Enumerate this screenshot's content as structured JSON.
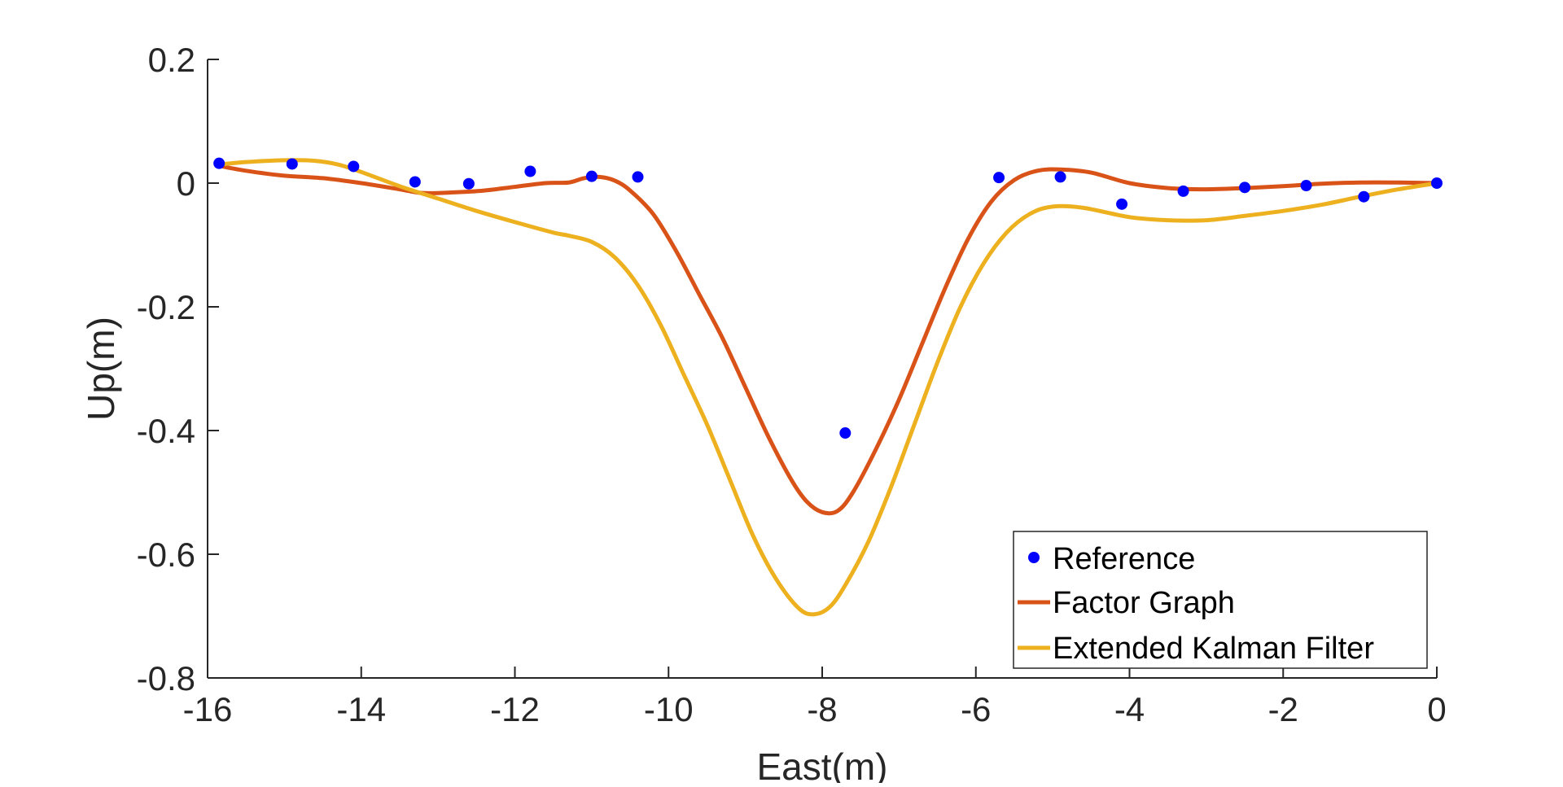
{
  "chart_data": {
    "type": "line",
    "xlabel": "East(m)",
    "ylabel": "Up(m)",
    "xlim": [
      -16,
      0
    ],
    "ylim": [
      -0.8,
      0.2
    ],
    "x_ticks": [
      -16,
      -14,
      -12,
      -10,
      -8,
      -6,
      -4,
      -2,
      0
    ],
    "y_ticks": [
      0.2,
      0,
      -0.2,
      -0.4,
      -0.6,
      -0.8
    ],
    "x_tick_labels": [
      "-16",
      "-14",
      "-12",
      "-10",
      "-8",
      "-6",
      "-4",
      "-2",
      "0"
    ],
    "y_tick_labels": [
      "0.2",
      "0",
      "-0.2",
      "-0.4",
      "-0.6",
      "-0.8"
    ],
    "grid": false,
    "box": false,
    "legend_placement": "bottom-right",
    "series": [
      {
        "name": "Reference",
        "style": "markers",
        "color": "#0000ff",
        "x": [
          -15.85,
          -14.9,
          -14.1,
          -13.3,
          -12.6,
          -11.8,
          -11.0,
          -10.4,
          -7.7,
          -5.7,
          -4.9,
          -4.1,
          -3.3,
          -2.5,
          -1.7,
          -0.95,
          0.0
        ],
        "y": [
          0.032,
          0.031,
          0.027,
          0.002,
          -0.001,
          0.019,
          0.011,
          0.01,
          -0.404,
          0.009,
          0.01,
          -0.034,
          -0.013,
          -0.007,
          -0.004,
          -0.022,
          0.0
        ]
      },
      {
        "name": "Factor Graph",
        "style": "line",
        "color": "#d95319",
        "x": [
          -15.85,
          -15.5,
          -15.0,
          -14.5,
          -14.0,
          -13.5,
          -13.2,
          -12.8,
          -12.4,
          -12.0,
          -11.6,
          -11.3,
          -11.1,
          -10.9,
          -10.7,
          -10.5,
          -10.2,
          -9.9,
          -9.6,
          -9.3,
          -9.0,
          -8.7,
          -8.4,
          -8.2,
          -8.0,
          -7.8,
          -7.6,
          -7.3,
          -7.0,
          -6.7,
          -6.4,
          -6.1,
          -5.8,
          -5.5,
          -5.2,
          -4.9,
          -4.5,
          -4.0,
          -3.5,
          -3.0,
          -2.5,
          -2.0,
          -1.5,
          -1.0,
          -0.5,
          0.0
        ],
        "y": [
          0.028,
          0.02,
          0.012,
          0.008,
          0.0,
          -0.01,
          -0.016,
          -0.015,
          -0.012,
          -0.006,
          0.0,
          0.001,
          0.008,
          0.01,
          0.004,
          -0.012,
          -0.05,
          -0.11,
          -0.18,
          -0.25,
          -0.33,
          -0.41,
          -0.48,
          -0.515,
          -0.532,
          -0.53,
          -0.5,
          -0.43,
          -0.35,
          -0.26,
          -0.17,
          -0.09,
          -0.03,
          0.005,
          0.02,
          0.022,
          0.017,
          0.0,
          -0.008,
          -0.01,
          -0.008,
          -0.005,
          -0.001,
          0.001,
          0.001,
          0.0
        ]
      },
      {
        "name": "Extended Kalman Filter",
        "style": "line",
        "color": "#edb120",
        "x": [
          -15.85,
          -15.5,
          -15.0,
          -14.6,
          -14.3,
          -14.0,
          -13.5,
          -13.0,
          -12.5,
          -12.0,
          -11.5,
          -11.3,
          -11.0,
          -10.7,
          -10.4,
          -10.1,
          -9.8,
          -9.5,
          -9.2,
          -8.9,
          -8.6,
          -8.3,
          -8.1,
          -7.9,
          -7.7,
          -7.4,
          -7.1,
          -6.8,
          -6.5,
          -6.2,
          -5.9,
          -5.6,
          -5.3,
          -5.0,
          -4.6,
          -4.0,
          -3.5,
          -3.0,
          -2.5,
          -2.0,
          -1.5,
          -1.0,
          -0.5,
          0.0
        ],
        "y": [
          0.03,
          0.034,
          0.037,
          0.036,
          0.03,
          0.018,
          -0.005,
          -0.025,
          -0.045,
          -0.063,
          -0.08,
          -0.085,
          -0.095,
          -0.12,
          -0.165,
          -0.23,
          -0.31,
          -0.39,
          -0.48,
          -0.57,
          -0.64,
          -0.688,
          -0.697,
          -0.685,
          -0.65,
          -0.58,
          -0.49,
          -0.39,
          -0.29,
          -0.2,
          -0.13,
          -0.08,
          -0.05,
          -0.038,
          -0.04,
          -0.055,
          -0.06,
          -0.06,
          -0.053,
          -0.045,
          -0.035,
          -0.022,
          -0.01,
          0.0
        ]
      }
    ]
  },
  "colors": {
    "axis": "#262626",
    "reference": "#0000ff",
    "factor_graph": "#d95319",
    "ekf": "#edb120"
  }
}
